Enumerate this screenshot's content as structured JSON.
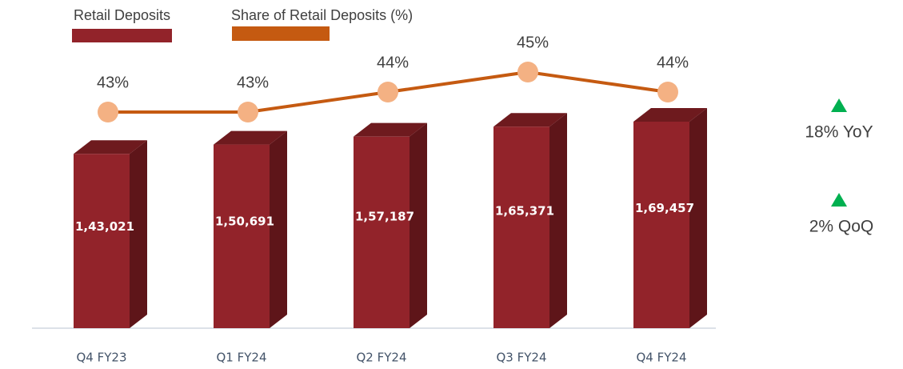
{
  "chart_data": {
    "type": "bar-line",
    "categories": [
      "Q4 FY23",
      "Q1 FY24",
      "Q2 FY24",
      "Q3 FY24",
      "Q4 FY24"
    ],
    "series": [
      {
        "name": "Retail Deposits",
        "color": "#92232a",
        "type": "bar",
        "values": [
          143021,
          150691,
          157187,
          165371,
          169457
        ],
        "value_labels": [
          "1,43,021",
          "1,50,691",
          "1,57,187",
          "1,65,371",
          "1,69,457"
        ]
      },
      {
        "name": "Share of Retail Deposits (%)",
        "color": "#c55a11",
        "type": "line",
        "axis": "y2",
        "values": [
          43,
          43,
          44,
          45,
          44
        ],
        "value_labels": [
          "43%",
          "43%",
          "44%",
          "45%",
          "44%"
        ]
      }
    ],
    "annotations": [
      "18% YoY",
      "2% QoQ"
    ]
  }
}
